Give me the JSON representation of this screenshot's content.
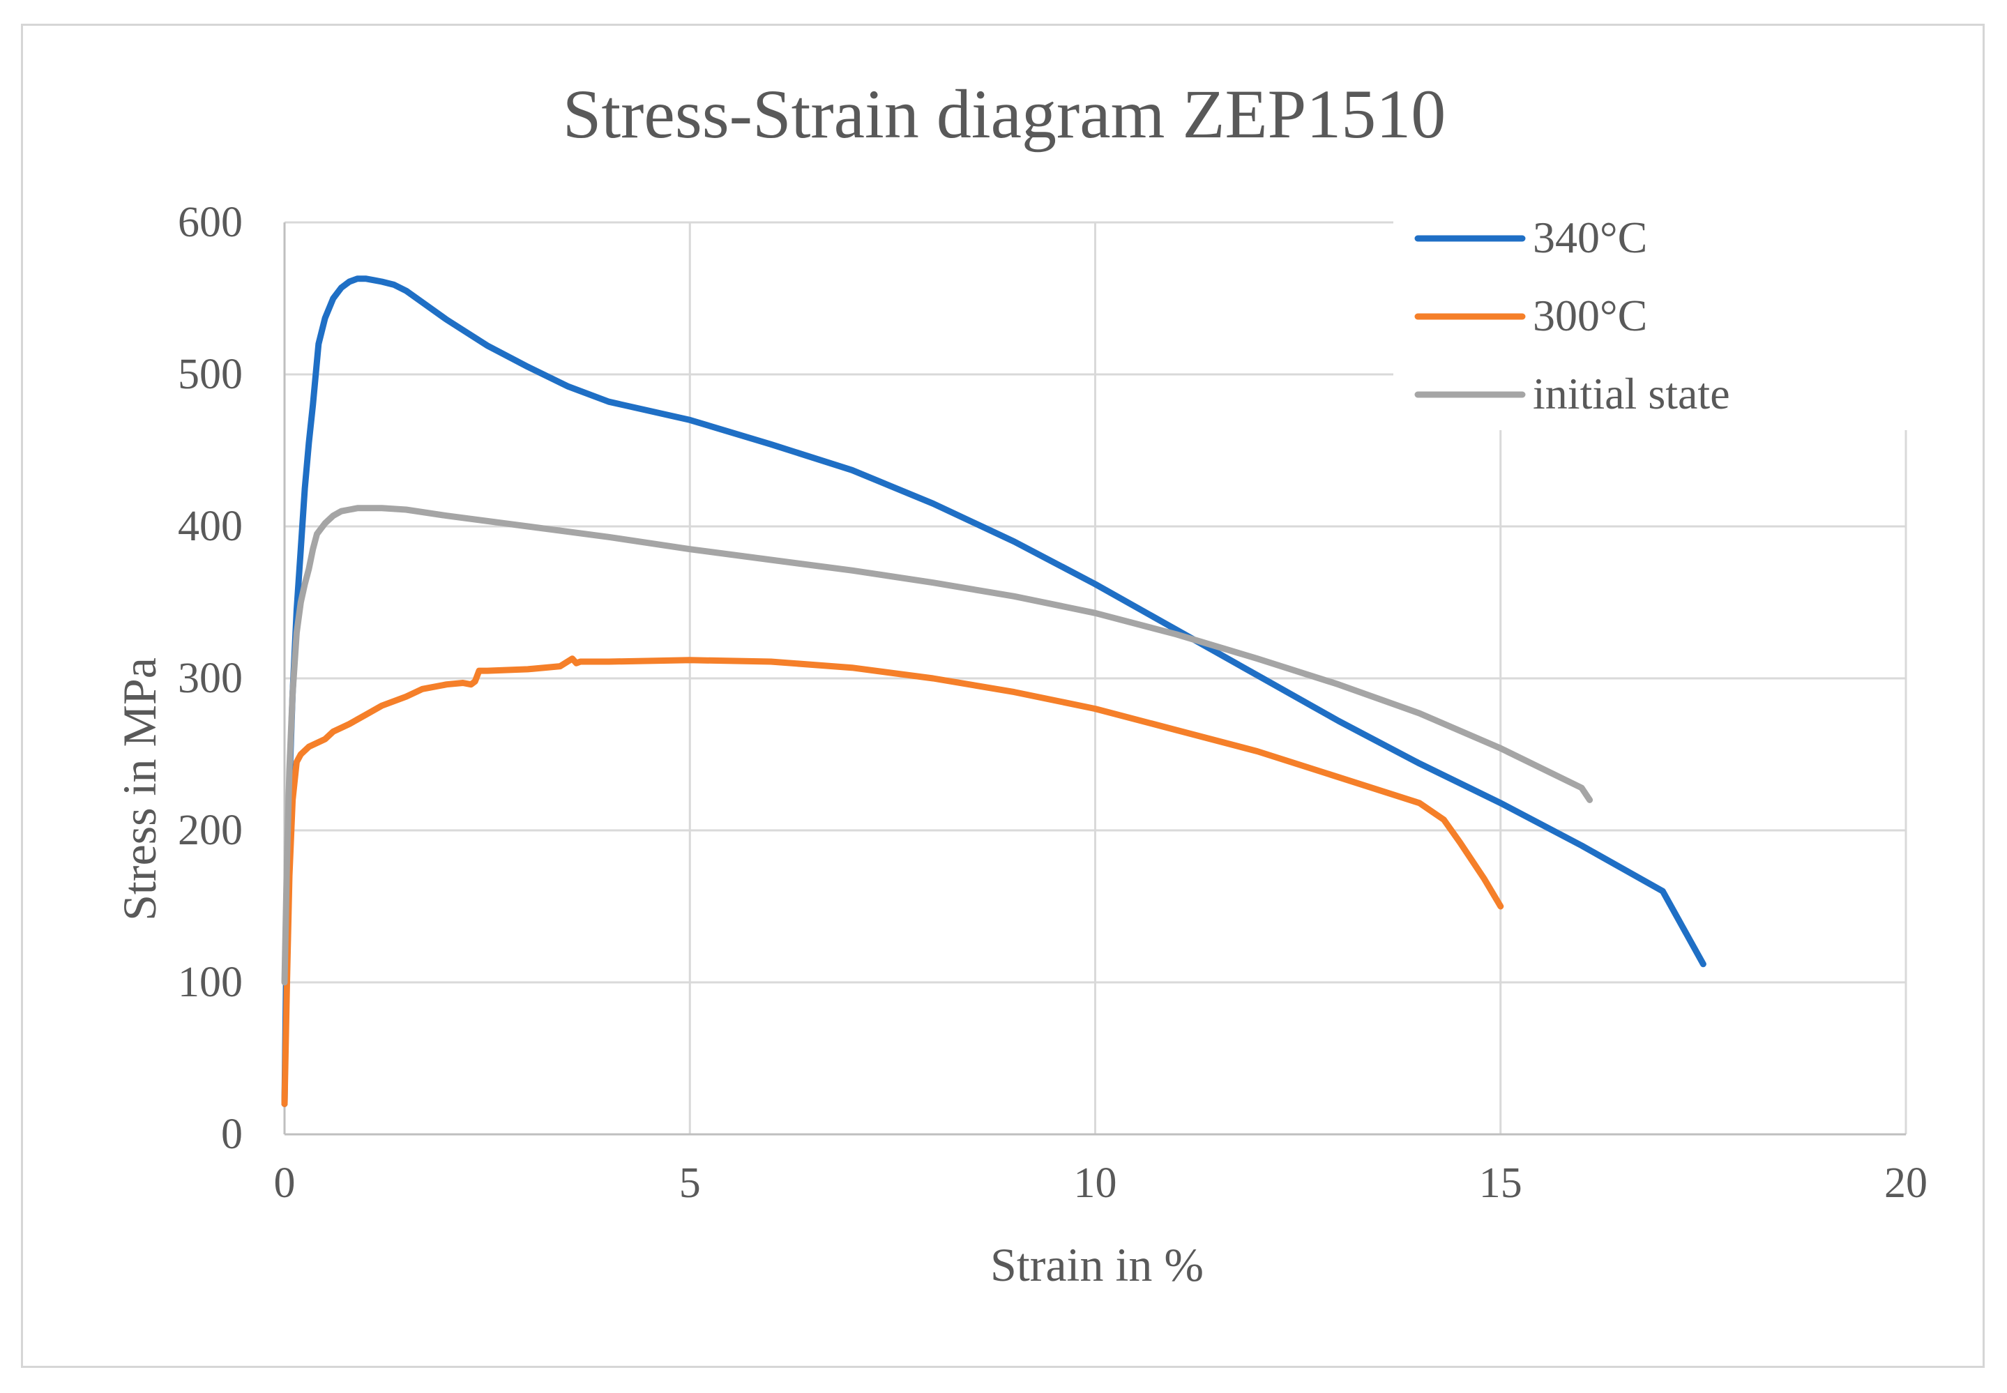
{
  "chart_data": {
    "type": "line",
    "title": "Stress-Strain diagram ZEP1510",
    "xlabel": "Strain in %",
    "ylabel": "Stress in MPa",
    "xlim": [
      0,
      20
    ],
    "ylim": [
      0,
      600
    ],
    "xticks": [
      0,
      5,
      10,
      15,
      20
    ],
    "yticks": [
      0,
      100,
      200,
      300,
      400,
      500,
      600
    ],
    "grid": true,
    "legend_position": "top-right",
    "series": [
      {
        "name": "340°C",
        "color": "#1F6FC5",
        "x": [
          0,
          0.03,
          0.06,
          0.1,
          0.15,
          0.2,
          0.25,
          0.3,
          0.35,
          0.42,
          0.5,
          0.6,
          0.7,
          0.8,
          0.9,
          1.0,
          1.1,
          1.2,
          1.35,
          1.5,
          2.0,
          2.5,
          3.0,
          3.5,
          4.0,
          5.0,
          6.0,
          7.0,
          8.0,
          9.0,
          10.0,
          11.0,
          12.0,
          13.0,
          14.0,
          15.0,
          16.0,
          17.0,
          17.5
        ],
        "y": [
          20,
          150,
          230,
          290,
          345,
          385,
          425,
          455,
          480,
          520,
          537,
          550,
          557,
          561,
          563,
          563,
          562,
          561,
          559,
          555,
          536,
          519,
          505,
          492,
          482,
          470,
          454,
          437,
          415,
          390,
          362,
          332,
          302,
          272,
          244,
          218,
          190,
          160,
          112
        ]
      },
      {
        "name": "300°C",
        "color": "#F57F29",
        "x": [
          0,
          0.03,
          0.06,
          0.1,
          0.15,
          0.2,
          0.3,
          0.5,
          0.6,
          0.8,
          1.0,
          1.2,
          1.5,
          1.7,
          2.0,
          2.2,
          2.3,
          2.35,
          2.4,
          2.5,
          3.0,
          3.4,
          3.55,
          3.6,
          3.65,
          4.0,
          5.0,
          6.0,
          7.0,
          8.0,
          9.0,
          10.0,
          11.0,
          12.0,
          13.0,
          14.0,
          14.3,
          14.5,
          14.8,
          15.0
        ],
        "y": [
          20,
          100,
          170,
          220,
          245,
          250,
          255,
          260,
          265,
          270,
          276,
          282,
          288,
          293,
          296,
          297,
          296,
          298,
          305,
          305,
          306,
          308,
          313,
          310,
          311,
          311,
          312,
          311,
          307,
          300,
          291,
          280,
          266,
          252,
          235,
          218,
          207,
          192,
          168,
          150
        ]
      },
      {
        "name": "initial state",
        "color": "#A5A5A5",
        "x": [
          0,
          0.03,
          0.06,
          0.1,
          0.15,
          0.2,
          0.25,
          0.3,
          0.35,
          0.4,
          0.5,
          0.6,
          0.7,
          0.8,
          0.9,
          1.0,
          1.2,
          1.5,
          2.0,
          3.0,
          4.0,
          5.0,
          6.0,
          7.0,
          8.0,
          9.0,
          10.0,
          11.0,
          12.0,
          13.0,
          14.0,
          15.0,
          16.0,
          16.1
        ],
        "y": [
          100,
          180,
          240,
          290,
          330,
          350,
          362,
          372,
          385,
          395,
          402,
          407,
          410,
          411,
          412,
          412,
          412,
          411,
          407,
          400,
          393,
          385,
          378,
          371,
          363,
          354,
          343,
          329,
          313,
          296,
          277,
          254,
          228,
          220
        ]
      }
    ]
  }
}
